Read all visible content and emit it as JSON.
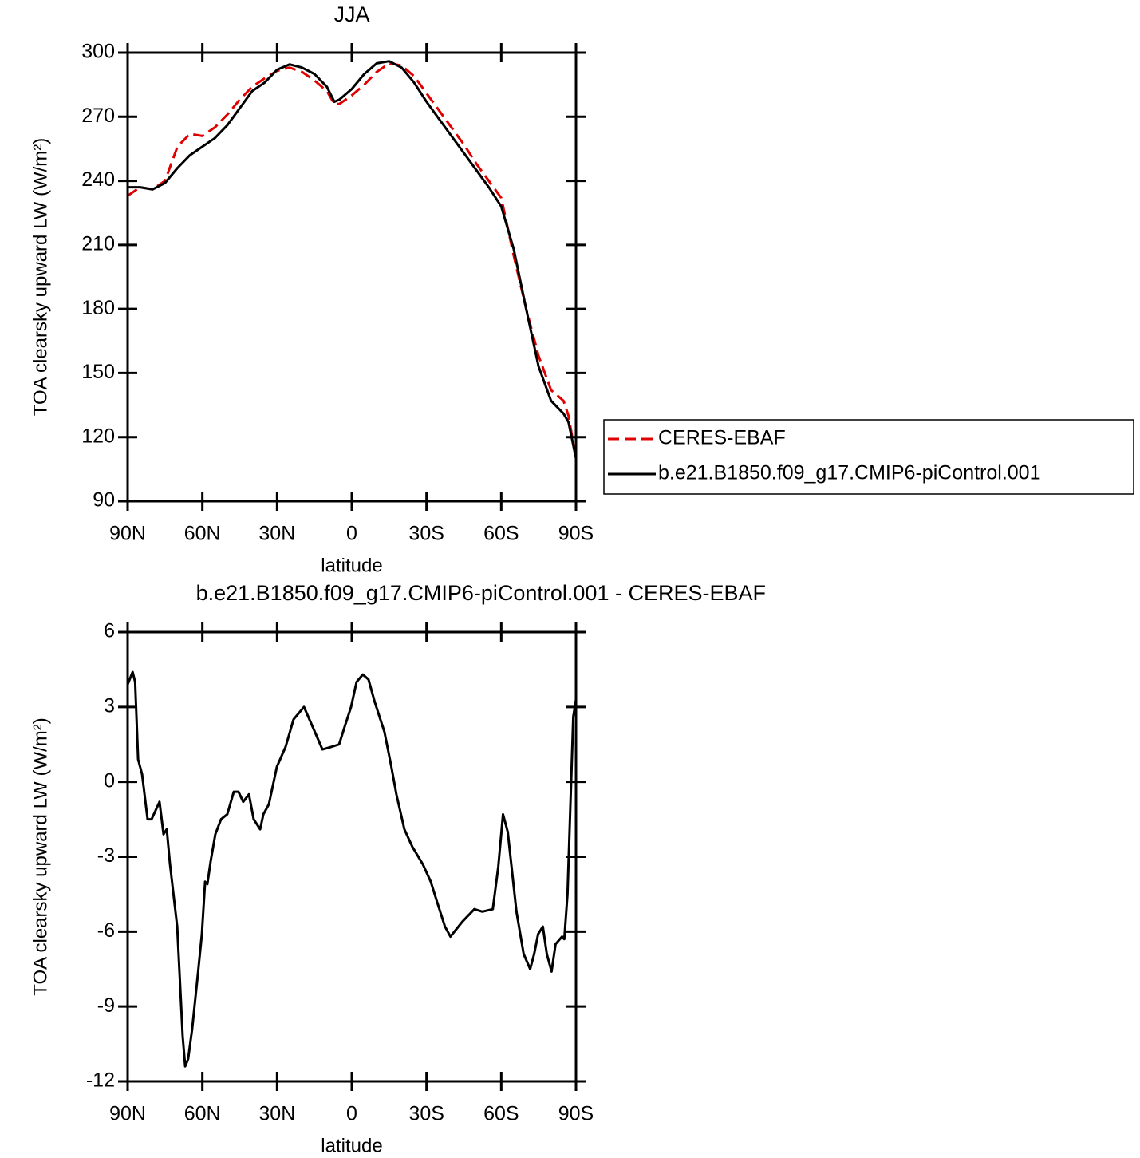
{
  "chart_data": [
    {
      "type": "line",
      "title": "JJA",
      "xlabel": "latitude",
      "ylabel": "TOA clearsky upward LW (W/m²)",
      "x": [
        90,
        85,
        80,
        75,
        70,
        65,
        60,
        55,
        50,
        45,
        40,
        35,
        30,
        25,
        20,
        15,
        10,
        7,
        5,
        0,
        -5,
        -10,
        -15,
        -20,
        -25,
        -30,
        -35,
        -40,
        -45,
        -50,
        -55,
        -60,
        -65,
        -70,
        -75,
        -80,
        -85,
        -87,
        -90
      ],
      "series": [
        {
          "name": "CERES-EBAF",
          "color": "#e00000",
          "line_style": "dashed",
          "values": [
            233,
            237,
            236,
            240,
            256,
            262,
            261,
            265,
            271,
            278,
            284,
            288,
            291.5,
            293,
            291,
            287,
            282,
            276,
            276,
            280,
            285,
            291,
            295,
            294,
            289,
            281,
            273,
            265,
            257,
            248,
            240,
            232,
            205,
            180,
            158,
            142,
            137,
            130,
            110
          ]
        },
        {
          "name": "b.e21.B1850.f09_g17.CMIP6-piControl.001",
          "color": "#000000",
          "line_style": "solid",
          "values": [
            237,
            237,
            236,
            239,
            246,
            252,
            256,
            260,
            266,
            274,
            282,
            286,
            292,
            294.5,
            293,
            290,
            284,
            277,
            278,
            283,
            290,
            295,
            296,
            293,
            286,
            277,
            269,
            261,
            253,
            245,
            237,
            228,
            208,
            180,
            153,
            137,
            131,
            127,
            110
          ]
        }
      ],
      "xlim": [
        90,
        -90
      ],
      "xticks": [
        {
          "value": 90,
          "label": "90N"
        },
        {
          "value": 60,
          "label": "60N"
        },
        {
          "value": 30,
          "label": "30N"
        },
        0,
        {
          "value": -30,
          "label": "30S"
        },
        {
          "value": -60,
          "label": "60S"
        },
        {
          "value": -90,
          "label": "90S"
        }
      ],
      "ylim": [
        90,
        300
      ],
      "yticks": [
        90,
        120,
        150,
        180,
        210,
        240,
        270,
        300
      ],
      "legend": "right"
    },
    {
      "type": "line",
      "title": "b.e21.B1850.f09_g17.CMIP6-piControl.001 - CERES-EBAF",
      "xlabel": "latitude",
      "ylabel": "TOA clearsky upward LW (W/m²)",
      "x": [
        90,
        88,
        87,
        85.8,
        84.2,
        82,
        80.4,
        77.2,
        75.6,
        74.3,
        73,
        70.1,
        67.9,
        66.9,
        65.7,
        64.1,
        61.8,
        60.2,
        58.9,
        58,
        56.7,
        54.8,
        52.5,
        50,
        47.4,
        45.5,
        43.6,
        41.3,
        39.4,
        36.8,
        35.5,
        33.3,
        30.1,
        26.6,
        23.4,
        19.2,
        15.7,
        11.8,
        8.3,
        5.1,
        2.9,
        0.3,
        -1.9,
        -4.4,
        -6.7,
        -9.2,
        -13.1,
        -15.7,
        -17.9,
        -21.1,
        -24.3,
        -28.5,
        -31.7,
        -34.2,
        -37.4,
        -39.6,
        -44.4,
        -49.2,
        -52.4,
        -56.6,
        -58.8,
        -60.7,
        -62.6,
        -66.1,
        -69,
        -71.6,
        -73.2,
        -74.8,
        -76.7,
        -78.3,
        -80.2,
        -81.8,
        -84.4,
        -85.3,
        -86.6,
        -87.9,
        -88.9,
        -90
      ],
      "values": [
        3.9,
        4.4,
        4.0,
        0.9,
        0.3,
        -1.5,
        -1.5,
        -0.8,
        -2.1,
        -1.9,
        -3.3,
        -5.8,
        -10.2,
        -11.4,
        -11.1,
        -9.9,
        -7.7,
        -6.1,
        -4.0,
        -4.1,
        -3.2,
        -2.1,
        -1.5,
        -1.3,
        -0.4,
        -0.4,
        -0.8,
        -0.5,
        -1.5,
        -1.9,
        -1.3,
        -0.9,
        0.6,
        1.4,
        2.5,
        3.0,
        2.2,
        1.3,
        1.4,
        1.5,
        2.2,
        3.0,
        4.0,
        4.3,
        4.1,
        3.2,
        2.0,
        0.7,
        -0.5,
        -1.9,
        -2.6,
        -3.3,
        -4.0,
        -4.8,
        -5.8,
        -6.2,
        -5.6,
        -5.1,
        -5.2,
        -5.1,
        -3.4,
        -1.3,
        -2.0,
        -5.2,
        -6.9,
        -7.5,
        -6.9,
        -6.1,
        -5.8,
        -6.9,
        -7.6,
        -6.5,
        -6.2,
        -6.3,
        -4.5,
        -0.5,
        2.6,
        3.3
      ],
      "color": "#000000",
      "xlim": [
        90,
        -90
      ],
      "xticks": [
        {
          "value": 90,
          "label": "90N"
        },
        {
          "value": 60,
          "label": "60N"
        },
        {
          "value": 30,
          "label": "30N"
        },
        0,
        {
          "value": -30,
          "label": "30S"
        },
        {
          "value": -60,
          "label": "60S"
        },
        {
          "value": -90,
          "label": "90S"
        }
      ],
      "ylim": [
        -12,
        6
      ],
      "yticks": [
        -12,
        -9,
        -6,
        -3,
        0,
        3,
        6
      ]
    }
  ]
}
